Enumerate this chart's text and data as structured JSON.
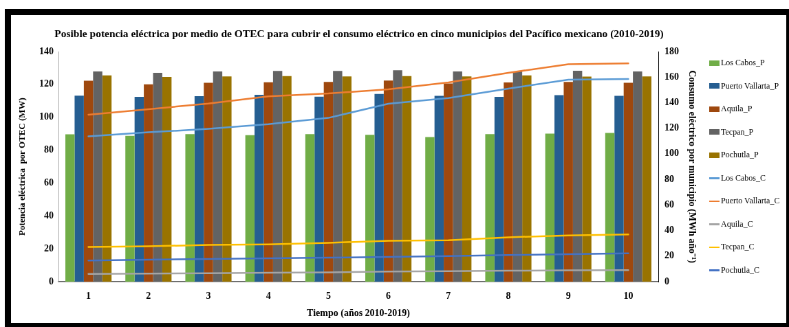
{
  "chart_data": {
    "type": "bar",
    "title": "Posible potencia eléctrica por medio de OTEC para cubrir el consumo eléctrico en cinco municipios del Pacífico mexicano (2010-2019)",
    "xlabel": "Tiempo (años 2010-2019)",
    "ylabel": "Potencia eléctrica  por OTEC (MW)",
    "y2label": "Consumo eléctrico por municipio (MWh año⁻¹)",
    "categories": [
      "1",
      "2",
      "3",
      "4",
      "5",
      "6",
      "7",
      "8",
      "9",
      "10"
    ],
    "series": [
      {
        "name": "Los Cabos_P",
        "color": "#70ad47",
        "values": [
          89.6,
          88.7,
          89.7,
          89.1,
          89.7,
          89.3,
          88.0,
          89.7,
          90.1,
          90.5
        ]
      },
      {
        "name": "Puerto Vallarta_P",
        "color": "#255e91",
        "values": [
          113.1,
          112.4,
          112.8,
          113.7,
          112.5,
          114.2,
          113.0,
          112.4,
          113.5,
          113.0
        ]
      },
      {
        "name": "Aquila_P",
        "color": "#9e480e",
        "values": [
          122.2,
          120.0,
          121.0,
          121.3,
          121.5,
          122.3,
          120.6,
          121.2,
          121.5,
          121.0
        ]
      },
      {
        "name": "Tecpan_P",
        "color": "#636363",
        "values": [
          127.9,
          127.0,
          127.9,
          128.2,
          128.2,
          128.6,
          127.9,
          127.9,
          128.3,
          127.9
        ]
      },
      {
        "name": "Pochutla_P",
        "color": "#997300",
        "values": [
          125.5,
          124.5,
          124.9,
          125.1,
          124.8,
          125.1,
          124.8,
          125.5,
          124.7,
          124.9
        ]
      },
      {
        "name": "Los Cabos_C",
        "type": "line",
        "axis": "y2",
        "color": "#5b9bd5",
        "values": [
          113.7,
          116.8,
          119.5,
          123.2,
          128.1,
          139.2,
          143.6,
          151.0,
          158.0,
          158.5
        ]
      },
      {
        "name": "Puerto Vallarta_C",
        "type": "line",
        "axis": "y2",
        "color": "#ed7d31",
        "values": [
          130.6,
          134.9,
          139.3,
          145.0,
          147.2,
          150.5,
          155.8,
          163.4,
          170.0,
          170.7
        ]
      },
      {
        "name": "Aquila_C",
        "type": "line",
        "axis": "y2",
        "color": "#a5a5a5",
        "values": [
          6.1,
          6.3,
          6.6,
          7.0,
          7.3,
          7.9,
          8.2,
          8.6,
          8.8,
          9.0
        ]
      },
      {
        "name": "Tecpan_C",
        "type": "line",
        "axis": "y2",
        "color": "#ffc000",
        "values": [
          27.2,
          27.7,
          28.7,
          29.2,
          30.4,
          32.0,
          32.4,
          34.7,
          36.2,
          36.9
        ]
      },
      {
        "name": "Pochutla_C",
        "type": "line",
        "axis": "y2",
        "color": "#4472c4",
        "values": [
          16.5,
          17.2,
          17.7,
          18.3,
          18.8,
          19.3,
          20.0,
          20.8,
          21.5,
          22.2
        ]
      }
    ],
    "ylim": [
      0,
      140
    ],
    "yticks": [
      0,
      20,
      40,
      60,
      80,
      100,
      120,
      140
    ],
    "y2lim": [
      0,
      180
    ],
    "y2ticks": [
      0,
      20,
      40,
      60,
      80,
      100,
      120,
      140,
      160,
      180
    ],
    "legend": "right",
    "marker": "none"
  }
}
